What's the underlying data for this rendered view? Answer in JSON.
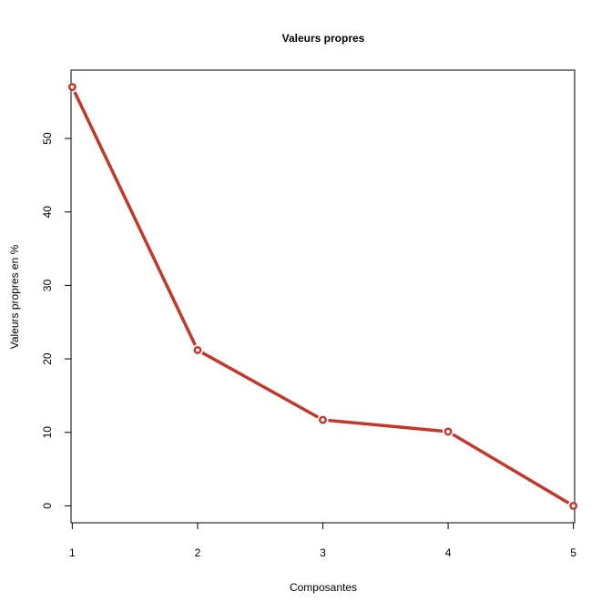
{
  "chart_data": {
    "type": "line",
    "title": "Valeurs propres",
    "xlabel": "Composantes",
    "ylabel": "Valeurs propres en %",
    "x": [
      1,
      2,
      3,
      4,
      5
    ],
    "xticks": [
      "1",
      "2",
      "3",
      "4",
      "5"
    ],
    "yticks": [
      "0",
      "10",
      "20",
      "30",
      "40",
      "50"
    ],
    "xlim": [
      0.99,
      5.01
    ],
    "ylim": [
      -2.3,
      59.3
    ],
    "grid": false,
    "series": [
      {
        "values": [
          57.0,
          21.2,
          11.7,
          10.1,
          0.0
        ],
        "color": "#c0392b"
      }
    ]
  }
}
